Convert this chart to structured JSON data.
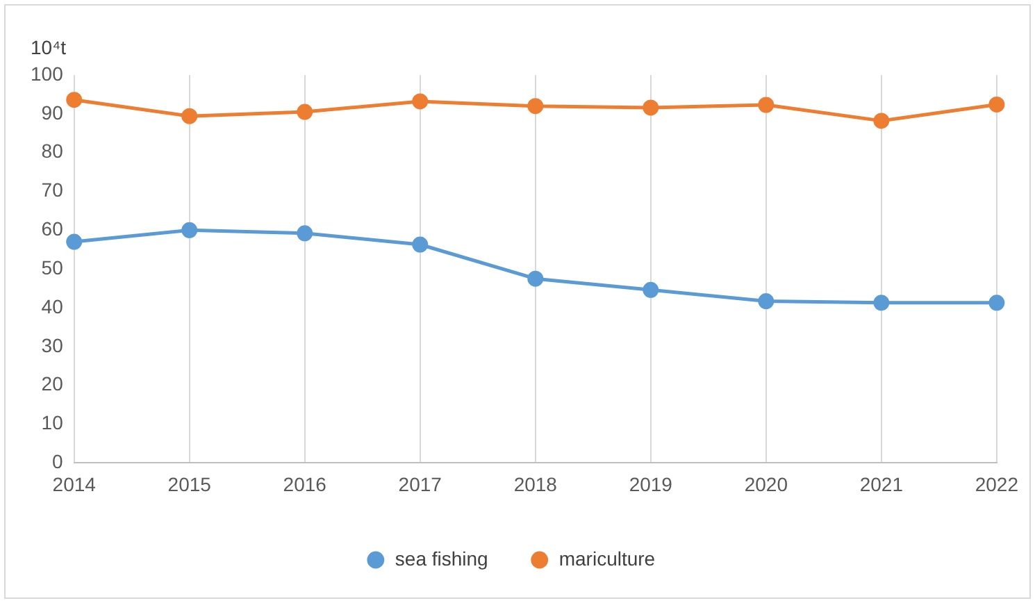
{
  "chart_data": {
    "type": "line",
    "ylabel": "10⁴t",
    "categories": [
      "2014",
      "2015",
      "2016",
      "2017",
      "2018",
      "2019",
      "2020",
      "2021",
      "2022"
    ],
    "series": [
      {
        "name": "sea fishing",
        "color": "#5b9bd5",
        "values": [
          57,
          60,
          59.2,
          56.3,
          47.5,
          44.6,
          41.7,
          41.3,
          41.3
        ]
      },
      {
        "name": "mariculture",
        "color": "#ed7d31",
        "values": [
          93.6,
          89.4,
          90.5,
          93.2,
          92,
          91.6,
          92.3,
          88.2,
          92.4
        ]
      }
    ],
    "ylim": [
      0,
      100
    ],
    "yticks": [
      0,
      10,
      20,
      30,
      40,
      50,
      60,
      70,
      80,
      90,
      100
    ],
    "grid": "x",
    "legend": "bottom",
    "marker": "circle",
    "line_style": "solid"
  }
}
